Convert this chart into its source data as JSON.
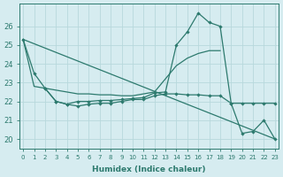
{
  "xlabel": "Humidex (Indice chaleur)",
  "xlim": [
    -0.3,
    23.3
  ],
  "ylim": [
    19.5,
    27.2
  ],
  "yticks": [
    20,
    21,
    22,
    23,
    24,
    25,
    26
  ],
  "xticks": [
    0,
    1,
    2,
    3,
    4,
    5,
    6,
    7,
    8,
    9,
    10,
    11,
    12,
    13,
    14,
    15,
    16,
    17,
    18,
    19,
    20,
    21,
    22,
    23
  ],
  "background_color": "#d6ecf0",
  "grid_color": "#b8d8dc",
  "line_color": "#2d7a6e",
  "line1_x": [
    0,
    1,
    2,
    3,
    4,
    5,
    6,
    7,
    8,
    9,
    10,
    11,
    12,
    13,
    14,
    15,
    16,
    17,
    18,
    19,
    20,
    21,
    22,
    23
  ],
  "line1_y": [
    25.3,
    23.5,
    22.7,
    22.0,
    21.85,
    22.0,
    22.0,
    22.05,
    22.05,
    22.1,
    22.15,
    22.2,
    22.45,
    22.5,
    25.0,
    25.7,
    26.7,
    26.2,
    26.0,
    21.9,
    20.3,
    20.4,
    21.0,
    20.0
  ],
  "line2_x": [
    0,
    1,
    2,
    3,
    4,
    5,
    6,
    7,
    8,
    9,
    10,
    11,
    12,
    13,
    14,
    15,
    16,
    17,
    18
  ],
  "line2_y": [
    25.3,
    22.8,
    22.7,
    22.6,
    22.5,
    22.4,
    22.4,
    22.35,
    22.35,
    22.3,
    22.3,
    22.4,
    22.5,
    23.2,
    23.9,
    24.3,
    24.55,
    24.7,
    24.7
  ],
  "line3_x": [
    2,
    3,
    4,
    5,
    6,
    7,
    8,
    9,
    10,
    11,
    12,
    13,
    14,
    15,
    16,
    17,
    18,
    19,
    20,
    21,
    22,
    23
  ],
  "line3_y": [
    22.7,
    22.0,
    21.85,
    21.75,
    21.85,
    21.9,
    21.9,
    22.0,
    22.1,
    22.1,
    22.3,
    22.4,
    22.4,
    22.35,
    22.35,
    22.3,
    22.3,
    21.9,
    21.9,
    21.9,
    21.9,
    21.9
  ],
  "line4_x": [
    0,
    23
  ],
  "line4_y": [
    25.3,
    20.0
  ]
}
